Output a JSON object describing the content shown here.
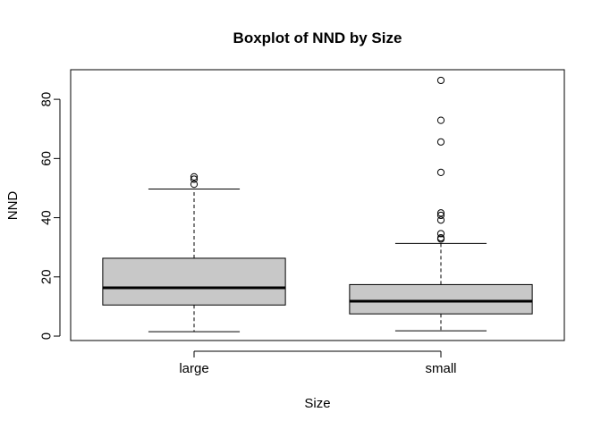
{
  "chart_data": {
    "type": "boxplot",
    "title": "Boxplot of NND by Size",
    "xlabel": "Size",
    "ylabel": "NND",
    "ylim": [
      -1.5,
      90
    ],
    "yticks": [
      0,
      20,
      40,
      60,
      80
    ],
    "grid": false,
    "box_fill": "#c8c8c8",
    "categories": [
      "large",
      "small"
    ],
    "boxes": [
      {
        "category": "large",
        "whisker_low": 1.5,
        "q1": 10.5,
        "median": 16.3,
        "q3": 26.3,
        "whisker_high": 49.7,
        "outliers": [
          51.3,
          53.0,
          53.8
        ]
      },
      {
        "category": "small",
        "whisker_low": 1.8,
        "q1": 7.5,
        "median": 11.8,
        "q3": 17.4,
        "whisker_high": 31.3,
        "outliers": [
          32.8,
          33.2,
          34.6,
          39.2,
          40.8,
          41.6,
          55.3,
          65.6,
          72.9,
          86.4
        ]
      }
    ]
  }
}
